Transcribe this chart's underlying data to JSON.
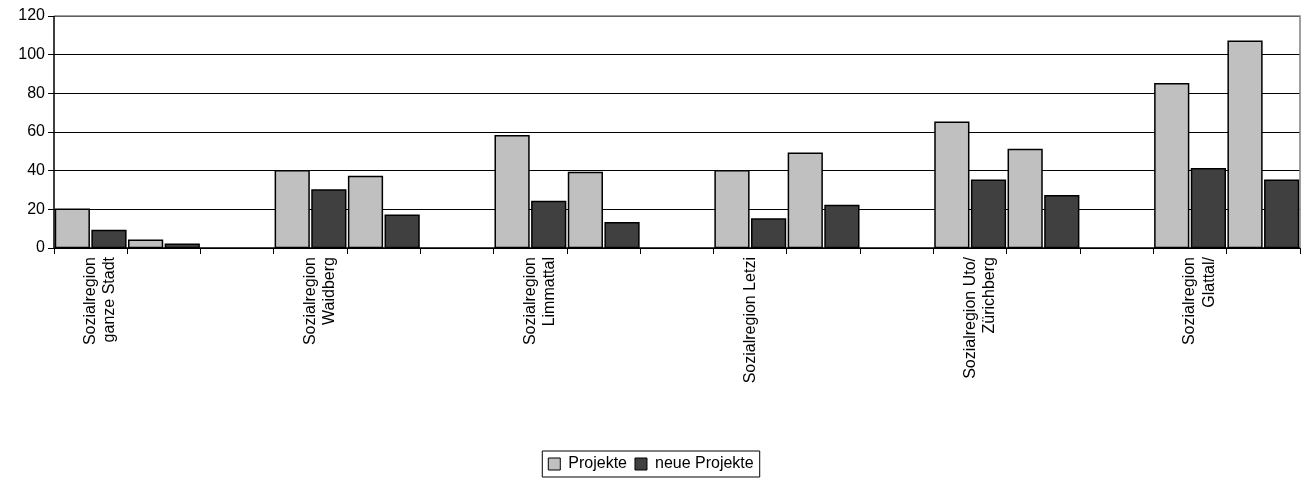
{
  "chart_data": {
    "type": "bar",
    "categories": [
      "Sozialregion ganze Stadt",
      null,
      null,
      "Sozialregion Waidberg",
      null,
      null,
      "Sozialregion Limmattal",
      null,
      null,
      "Sozialregion Letzi",
      null,
      null,
      "Sozialregion Uto/ Zürichberg",
      null,
      null,
      "Sozialregion Glattal/",
      null
    ],
    "series": [
      {
        "name": "Projekte",
        "color": "#c0c0c0",
        "values": [
          20,
          4,
          null,
          40,
          37,
          null,
          58,
          39,
          null,
          40,
          49,
          null,
          65,
          51,
          null,
          85,
          107
        ]
      },
      {
        "name": "neue Projekte",
        "color": "#404040",
        "values": [
          9,
          2,
          null,
          30,
          17,
          null,
          24,
          13,
          null,
          15,
          22,
          null,
          35,
          27,
          null,
          41,
          35
        ]
      }
    ],
    "ylim": [
      0,
      120
    ],
    "yticks": [
      0,
      20,
      40,
      60,
      80,
      100,
      120
    ],
    "grid": "y",
    "legend": "bottom"
  }
}
